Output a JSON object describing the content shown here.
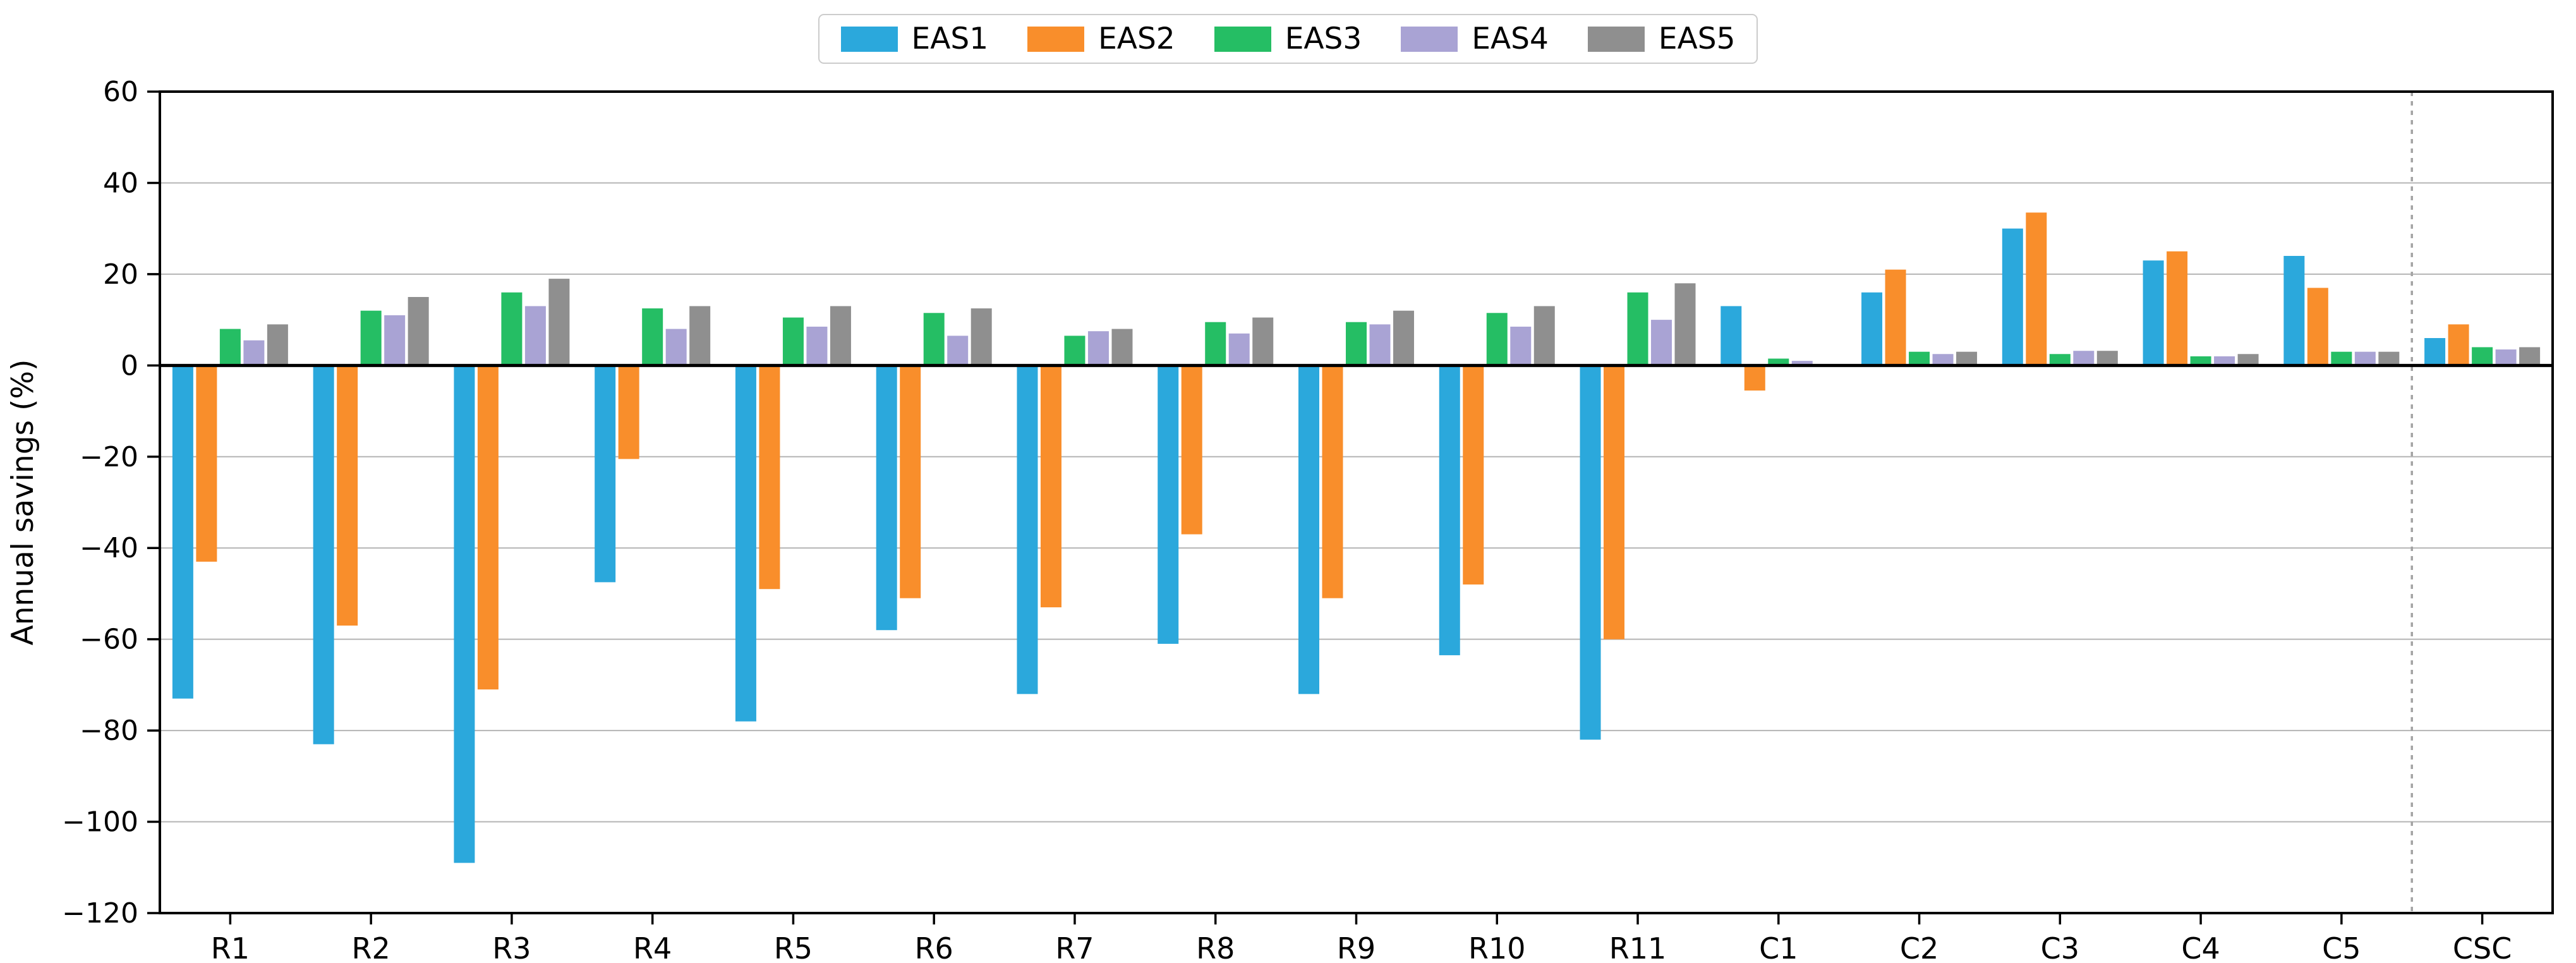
{
  "chart_data": {
    "type": "bar",
    "title": "",
    "xlabel": "",
    "ylabel": "Annual savings (%)",
    "ylim": [
      -120,
      60
    ],
    "yticks": [
      60,
      40,
      20,
      0,
      -20,
      -40,
      -60,
      -80,
      -100,
      -120
    ],
    "grid": "horizontal",
    "legend_position": "top-center",
    "categories": [
      "R1",
      "R2",
      "R3",
      "R4",
      "R5",
      "R6",
      "R7",
      "R8",
      "R9",
      "R10",
      "R11",
      "C1",
      "C2",
      "C3",
      "C4",
      "C5",
      "CSC"
    ],
    "series": [
      {
        "name": "EAS1",
        "color": "#2BA8DC",
        "values": [
          -73,
          -83,
          -109,
          -47.5,
          -78,
          -58,
          -72,
          -61,
          -72,
          -63.5,
          -82,
          13,
          16,
          30,
          23,
          24,
          6
        ]
      },
      {
        "name": "EAS2",
        "color": "#F98E2B",
        "values": [
          -43,
          -57,
          -71,
          -20.5,
          -49,
          -51,
          -53,
          -37,
          -51,
          -48,
          -60,
          -5.5,
          21,
          33.5,
          25,
          17,
          9
        ]
      },
      {
        "name": "EAS3",
        "color": "#25BE64",
        "values": [
          8,
          12,
          16,
          12.5,
          10.5,
          11.5,
          6.5,
          9.5,
          9.5,
          11.5,
          16,
          1.5,
          3,
          2.5,
          2,
          3,
          4
        ]
      },
      {
        "name": "EAS4",
        "color": "#A9A3D4",
        "values": [
          5.5,
          11,
          13,
          8,
          8.5,
          6.5,
          7.5,
          7,
          9,
          8.5,
          10,
          1,
          2.5,
          3.2,
          2,
          3,
          3.5
        ]
      },
      {
        "name": "EAS5",
        "color": "#8F8F8F",
        "values": [
          9,
          15,
          19,
          13,
          13,
          12.5,
          8,
          10.5,
          12,
          13,
          18,
          0,
          3,
          3.2,
          2.5,
          3,
          4
        ]
      }
    ],
    "separator_after_category": "C5",
    "axis_color": "#000000",
    "gridline_color": "#b4b4b4",
    "separator_line_color": "#a3a3a3"
  }
}
